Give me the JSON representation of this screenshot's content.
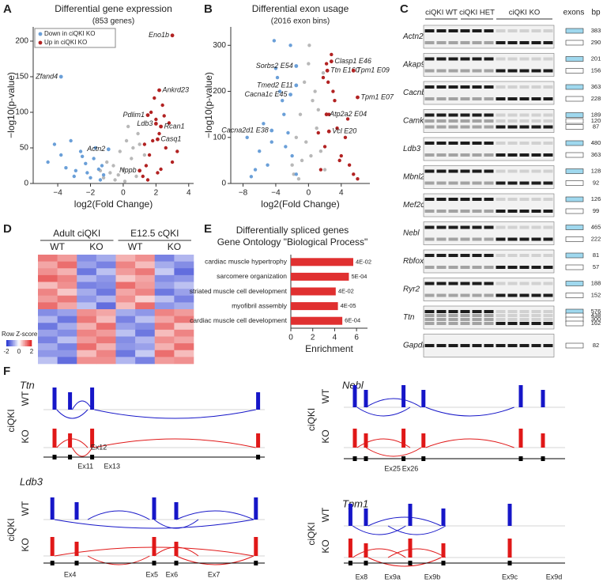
{
  "panel_labels": [
    "A",
    "B",
    "C",
    "D",
    "E",
    "F"
  ],
  "chart_data": [
    {
      "type": "scatter",
      "title": "Differential gene expression",
      "subtitle": "(853 genes)",
      "xlabel": "log2(Fold Change)",
      "ylabel": "−log10(p-value)",
      "xlim": [
        -5.5,
        4.3
      ],
      "ylim": [
        0,
        220
      ],
      "xticks": [
        {
          "value": -4,
          "label": "−4"
        },
        {
          "value": -2,
          "label": "−2"
        },
        0,
        2,
        4
      ],
      "yticks": [
        0,
        50,
        100,
        150,
        200
      ],
      "legend": "upper left",
      "series": [
        {
          "name": "Down in ciQKI KO",
          "color": "#6a9fd8",
          "x": [
            -1.2,
            -1.5,
            -1.8,
            -2.0,
            -2.3,
            -2.6,
            -2.9,
            -3.2,
            -3.5,
            -3.8,
            -4.2,
            -4.6,
            -1.4,
            -1.7,
            -2.2,
            -2.5,
            -3.0,
            -1.3
          ],
          "values": [
            12,
            20,
            35,
            8,
            28,
            45,
            18,
            60,
            22,
            40,
            55,
            30,
            5,
            50,
            15,
            38,
            10,
            25
          ]
        },
        {
          "name": "Up in ciQKI KO",
          "color": "#b22222",
          "x": [
            1.2,
            1.4,
            1.6,
            1.8,
            2.0,
            2.2,
            2.4,
            2.6,
            2.8,
            3.0,
            3.3,
            1.5,
            1.9,
            2.1,
            2.5,
            1.3,
            1.7,
            2.3
          ],
          "values": [
            10,
            25,
            40,
            60,
            90,
            70,
            110,
            50,
            85,
            30,
            45,
            5,
            120,
            15,
            95,
            55,
            100,
            20
          ]
        },
        {
          "color": "#b8b8b8",
          "x": [
            -1.0,
            -0.8,
            -0.5,
            -0.2,
            0,
            0.2,
            0.5,
            0.8,
            1.0,
            -1.2,
            0.3,
            -0.6,
            0.9,
            1.3,
            -1.4,
            0.6,
            -0.3,
            0.1
          ],
          "values": [
            30,
            15,
            5,
            45,
            20,
            60,
            35,
            10,
            55,
            8,
            80,
            25,
            70,
            40,
            18,
            50,
            12,
            3
          ]
        }
      ],
      "annotations": [
        {
          "text": "Eno1b",
          "x": 3.0,
          "y": 208
        },
        {
          "text": "Zfand4",
          "x": -3.8,
          "y": 150
        },
        {
          "text": "Ankrd23",
          "x": 2.2,
          "y": 131
        },
        {
          "text": "Pdlim1",
          "x": 1.5,
          "y": 96
        },
        {
          "text": "Ldb3",
          "x": 2.0,
          "y": 84
        },
        {
          "text": "Rcan1",
          "x": 2.3,
          "y": 80
        },
        {
          "text": "Casq1",
          "x": 2.1,
          "y": 62
        },
        {
          "text": "Actn2",
          "x": -0.9,
          "y": 48
        },
        {
          "text": "Nppb",
          "x": 1.0,
          "y": 18
        }
      ]
    },
    {
      "type": "scatter",
      "title": "Differential exon usage",
      "subtitle": "(2016 exon bins)",
      "xlabel": "log2(Fold Change)",
      "ylabel": "−log10(p-value)",
      "xlim": [
        -9.5,
        7.5
      ],
      "ylim": [
        0,
        340
      ],
      "xticks": [
        {
          "value": -8,
          "label": "−8"
        },
        {
          "value": -4,
          "label": "−4"
        },
        0,
        4
      ],
      "yticks": [
        0,
        100,
        200,
        300
      ],
      "series": [
        {
          "color": "#6a9fd8",
          "x": [
            -1.5,
            -2,
            -2.5,
            -3,
            -3.5,
            -4,
            -4.5,
            -5,
            -5.5,
            -6,
            -6.5,
            -7,
            -7.5,
            -2.2,
            -3.2,
            -4.2,
            -3.8,
            -2.8
          ],
          "values": [
            20,
            60,
            110,
            150,
            200,
            250,
            90,
            40,
            130,
            70,
            30,
            15,
            100,
            300,
            180,
            310,
            230,
            80
          ]
        },
        {
          "color": "#b22222",
          "x": [
            1.5,
            2,
            2.5,
            3,
            3.5,
            4,
            4.5,
            5,
            5.5,
            6,
            1.8,
            2.2,
            2.8,
            3.2,
            3.8,
            2.4,
            1.2,
            4.8
          ],
          "values": [
            30,
            80,
            150,
            200,
            120,
            60,
            100,
            40,
            20,
            10,
            230,
            260,
            280,
            180,
            50,
            220,
            110,
            140
          ]
        },
        {
          "color": "#b8b8b8",
          "x": [
            -2,
            -1.5,
            -1,
            -0.5,
            0,
            0.5,
            1,
            1.5,
            2,
            -1.2,
            -0.3,
            0.3,
            0.8,
            1.2,
            -0.8,
            0.1,
            -1.8,
            1.8
          ],
          "values": [
            40,
            100,
            150,
            220,
            260,
            180,
            120,
            70,
            30,
            10,
            90,
            60,
            200,
            160,
            50,
            300,
            20,
            240
          ]
        }
      ],
      "annotations": [
        {
          "text": "Clasp1 E46",
          "x": 2.8,
          "y": 265
        },
        {
          "text": "Sorbs2 E54",
          "x": -1.5,
          "y": 255
        },
        {
          "text": "Ttn E160",
          "x": 2.3,
          "y": 245
        },
        {
          "text": "Tpm1 E09",
          "x": 5.5,
          "y": 245
        },
        {
          "text": "Tmed2 E11",
          "x": -1.5,
          "y": 213
        },
        {
          "text": "Cacna1c E45",
          "x": -2.2,
          "y": 193
        },
        {
          "text": "Tpm1 E07",
          "x": 6.0,
          "y": 187
        },
        {
          "text": "Atp2a2 E04",
          "x": 2.2,
          "y": 150
        },
        {
          "text": "Cacna2d1 E38",
          "x": -4.5,
          "y": 115
        },
        {
          "text": "Vcl E20",
          "x": 2.5,
          "y": 113
        }
      ]
    },
    {
      "type": "heatmap",
      "groups": [
        "Adult ciQKI",
        "E12.5 cQKI"
      ],
      "columns": [
        "WT",
        "KO",
        "WT",
        "KO"
      ],
      "colorbar_label": "Row Z-score",
      "zlim": [
        -2,
        2
      ],
      "zticks": [
        -2,
        0,
        2
      ],
      "colors": [
        "#1f2fd0",
        "#ffffff",
        "#e02020"
      ],
      "values": [
        [
          1.2,
          0.9,
          -1.1,
          -0.8,
          0.7,
          1.0,
          -1.2,
          -0.7
        ],
        [
          0.8,
          1.3,
          -0.9,
          -1.2,
          1.1,
          0.6,
          -0.8,
          -1.1
        ],
        [
          1.0,
          0.7,
          -1.3,
          -0.6,
          0.9,
          1.2,
          -0.5,
          -1.4
        ],
        [
          1.4,
          1.1,
          -0.7,
          -1.0,
          0.5,
          0.8,
          -1.1,
          -1.0
        ],
        [
          0.6,
          1.0,
          -1.2,
          -1.1,
          1.3,
          0.9,
          -0.9,
          -0.6
        ],
        [
          1.1,
          0.5,
          -0.8,
          -1.3,
          0.8,
          1.1,
          -1.3,
          -0.9
        ],
        [
          0.9,
          1.2,
          -1.0,
          -0.7,
          1.0,
          0.4,
          -0.6,
          -1.2
        ],
        [
          1.3,
          0.8,
          -0.6,
          -1.4,
          0.6,
          1.3,
          -1.0,
          -0.8
        ],
        [
          -1.1,
          -0.9,
          1.0,
          0.8,
          -0.8,
          -1.0,
          1.1,
          0.9
        ],
        [
          -0.7,
          -1.3,
          1.2,
          0.6,
          -1.2,
          -0.6,
          0.8,
          1.2
        ],
        [
          -1.3,
          -0.8,
          0.7,
          1.3,
          -0.9,
          -1.1,
          1.2,
          0.5
        ],
        [
          -0.9,
          -1.1,
          1.1,
          0.9,
          -0.6,
          -1.3,
          0.6,
          1.1
        ],
        [
          -1.2,
          -0.6,
          0.9,
          1.2,
          -1.1,
          -0.7,
          1.0,
          0.8
        ],
        [
          -0.8,
          -1.2,
          1.3,
          0.7,
          -1.0,
          -0.9,
          0.7,
          1.3
        ],
        [
          -1.0,
          -1.0,
          0.6,
          1.1,
          -1.3,
          -0.5,
          1.3,
          0.6
        ],
        [
          -0.6,
          -1.4,
          1.0,
          1.0,
          -0.7,
          -1.2,
          0.9,
          1.0
        ]
      ]
    },
    {
      "type": "bar",
      "title": "Differentially spliced genes",
      "subtitle": "Gene Ontology \"Biological Process\"",
      "xlabel": "Enrichment",
      "color": "#e03030",
      "categories": [
        "cardiac muscle hypertrophy",
        "sarcomere organization",
        "striated muscle cell development",
        "myofibril assembly",
        "cardiac muscle cell development"
      ],
      "values": [
        5.7,
        5.3,
        4.1,
        4.3,
        4.7
      ],
      "p_values": [
        {
          "value": 0.04,
          "label": "4E-02"
        },
        {
          "value": 0.0005,
          "label": "5E-04"
        },
        {
          "value": 0.04,
          "label": "4E-02"
        },
        {
          "value": 4e-05,
          "label": "4E-05"
        },
        {
          "value": 0.0006,
          "label": "6E-04"
        }
      ],
      "xlim": [
        0,
        7
      ],
      "xticks": [
        0,
        2,
        4,
        6
      ]
    }
  ],
  "gel": {
    "groups": [
      "ciQKI WT",
      "ciQKI HET",
      "ciQKI KO"
    ],
    "exons_header": "exons",
    "bp_header": "bp",
    "rows": [
      {
        "gene": "Actn2",
        "bp": [
          383,
          290
        ]
      },
      {
        "gene": "Akap9",
        "bp": [
          201,
          156
        ]
      },
      {
        "gene": "Cacnb1",
        "bp": [
          363,
          228
        ]
      },
      {
        "gene": "Camk2d",
        "bp": [
          189,
          120,
          87
        ]
      },
      {
        "gene": "Ldb3",
        "bp": [
          480,
          363
        ]
      },
      {
        "gene": "Mbnl2",
        "bp": [
          128,
          92
        ]
      },
      {
        "gene": "Mef2c",
        "bp": [
          126,
          99
        ]
      },
      {
        "gene": "Nebl",
        "bp": [
          465,
          222
        ]
      },
      {
        "gene": "Rbfox2",
        "bp": [
          81,
          57
        ]
      },
      {
        "gene": "Ryr2",
        "bp": [
          188,
          152
        ]
      },
      {
        "gene": "Ttn",
        "bp": [
          576,
          438,
          300,
          162
        ]
      },
      {
        "gene": "Gapdh",
        "bp": [
          82
        ]
      }
    ]
  },
  "sashimi": {
    "condition": "ciQKI",
    "tracks": [
      "WT",
      "KO"
    ],
    "genes": [
      {
        "name": "Ttn",
        "exons": [
          "Ex12",
          "Ex11",
          "Ex13"
        ]
      },
      {
        "name": "Nebl",
        "exons": [
          "Ex25",
          "Ex26"
        ]
      },
      {
        "name": "Ldb3",
        "exons": [
          "Ex4",
          "Ex5",
          "Ex6",
          "Ex7"
        ]
      },
      {
        "name": "Tpm1",
        "exons": [
          "Ex8",
          "Ex9a",
          "Ex9b",
          "Ex9c",
          "Ex9d"
        ]
      }
    ]
  }
}
